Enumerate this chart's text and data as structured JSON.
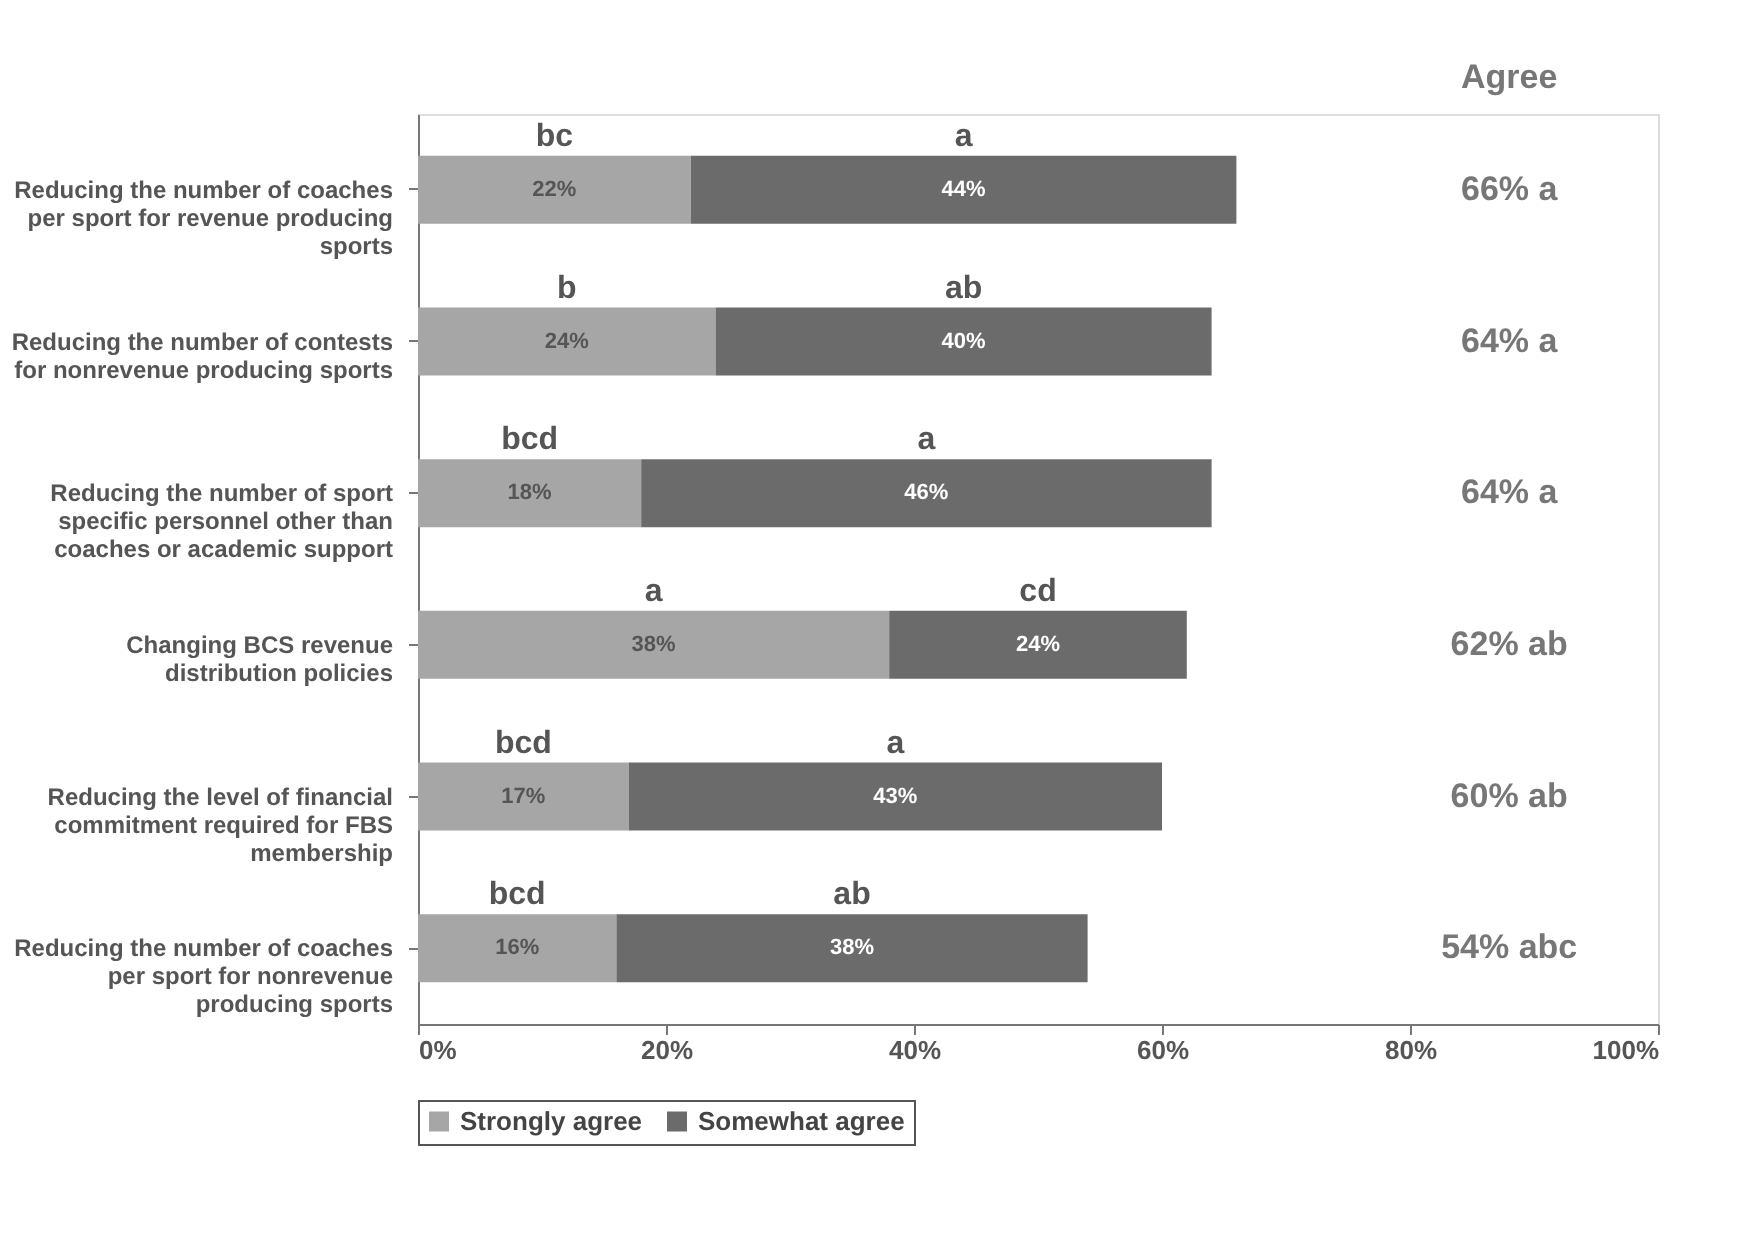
{
  "chart_data": {
    "type": "bar",
    "orientation": "horizontal",
    "stacked": true,
    "categories": [
      "Reducing the number of coaches per sport for revenue producing sports",
      "Reducing the number of contests for nonrevenue producing sports",
      "Reducing the number of sport specific personnel other than coaches or academic support",
      "Changing BCS revenue distribution policies",
      "Reducing the level of financial commitment required for FBS membership",
      "Reducing the number of coaches per sport for nonrevenue producing sports"
    ],
    "series": [
      {
        "name": "Strongly agree",
        "color": "#a6a6a6",
        "values": [
          22,
          24,
          18,
          38,
          17,
          16
        ],
        "value_labels": [
          "22%",
          "24%",
          "18%",
          "38%",
          "17%",
          "16%"
        ]
      },
      {
        "name": "Somewhat agree",
        "color": "#6b6b6b",
        "values": [
          44,
          40,
          46,
          24,
          43,
          38
        ],
        "value_labels": [
          "44%",
          "40%",
          "46%",
          "24%",
          "43%",
          "38%"
        ]
      }
    ],
    "xlim": [
      0,
      100
    ],
    "xticks": [
      {
        "value": 0,
        "label": "0%"
      },
      {
        "value": 20,
        "label": "20%"
      },
      {
        "value": 40,
        "label": "40%"
      },
      {
        "value": 60,
        "label": "60%"
      },
      {
        "value": 80,
        "label": "80%"
      },
      {
        "value": 100,
        "label": "100%"
      }
    ],
    "legend": "bottom",
    "grid": false,
    "annotations": [
      "Agree",
      "bc",
      "a",
      "b",
      "ab",
      "bcd",
      "a",
      "a",
      "cd",
      "bcd",
      "a",
      "bcd",
      "ab",
      "66% a",
      "64% a",
      "64% a",
      "62% ab",
      "60% ab",
      "54% abc"
    ]
  }
}
